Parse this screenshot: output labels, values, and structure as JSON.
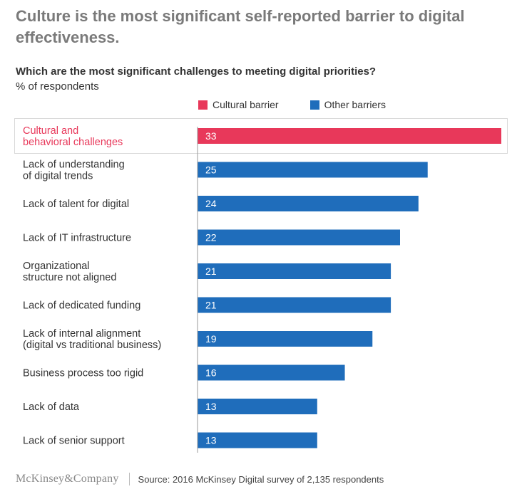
{
  "header": {
    "title": "Culture is the most significant self-reported barrier to digital effectiveness."
  },
  "chart_data": {
    "type": "bar",
    "orientation": "horizontal",
    "title": "Which are the most significant challenges to meeting digital priorities?",
    "ylabel": "% of respondents",
    "legend": [
      {
        "name": "Cultural barrier",
        "color": "#e8385a"
      },
      {
        "name": "Other barriers",
        "color": "#1f6dbb"
      }
    ],
    "legend_position": "top",
    "categories": [
      "Cultural and\nbehavioral challenges",
      "Lack of understanding\nof digital trends",
      "Lack of talent for digital",
      "Lack of IT infrastructure",
      "Organizational\nstructure not aligned",
      "Lack of dedicated funding",
      "Lack of internal alignment\n(digital vs traditional business)",
      "Business process too rigid",
      "Lack of data",
      "Lack of senior support"
    ],
    "values": [
      33,
      25,
      24,
      22,
      21,
      21,
      19,
      16,
      13,
      13
    ],
    "groups": [
      "Cultural barrier",
      "Other barriers",
      "Other barriers",
      "Other barriers",
      "Other barriers",
      "Other barriers",
      "Other barriers",
      "Other barriers",
      "Other barriers",
      "Other barriers"
    ],
    "xlim": [
      0,
      33
    ],
    "grid": false
  },
  "colors": {
    "cultural": "#e8385a",
    "other": "#1f6dbb",
    "label_text": "#333333",
    "highlight_text": "#e8385a"
  },
  "footer": {
    "logo": "McKinsey&Company",
    "source": "Source: 2016 McKinsey Digital survey of 2,135 respondents"
  }
}
